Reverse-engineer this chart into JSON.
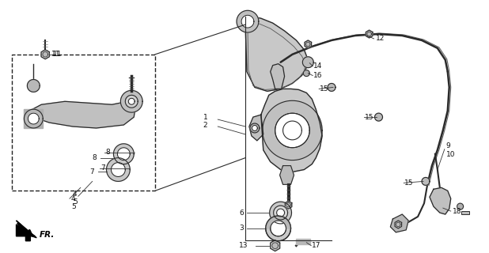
{
  "bg_color": "#ffffff",
  "fig_width": 6.18,
  "fig_height": 3.2,
  "dpi": 100,
  "line_color": "#2a2a2a",
  "fill_light": "#c8c8c8",
  "fill_mid": "#aaaaaa",
  "fill_dark": "#888888"
}
